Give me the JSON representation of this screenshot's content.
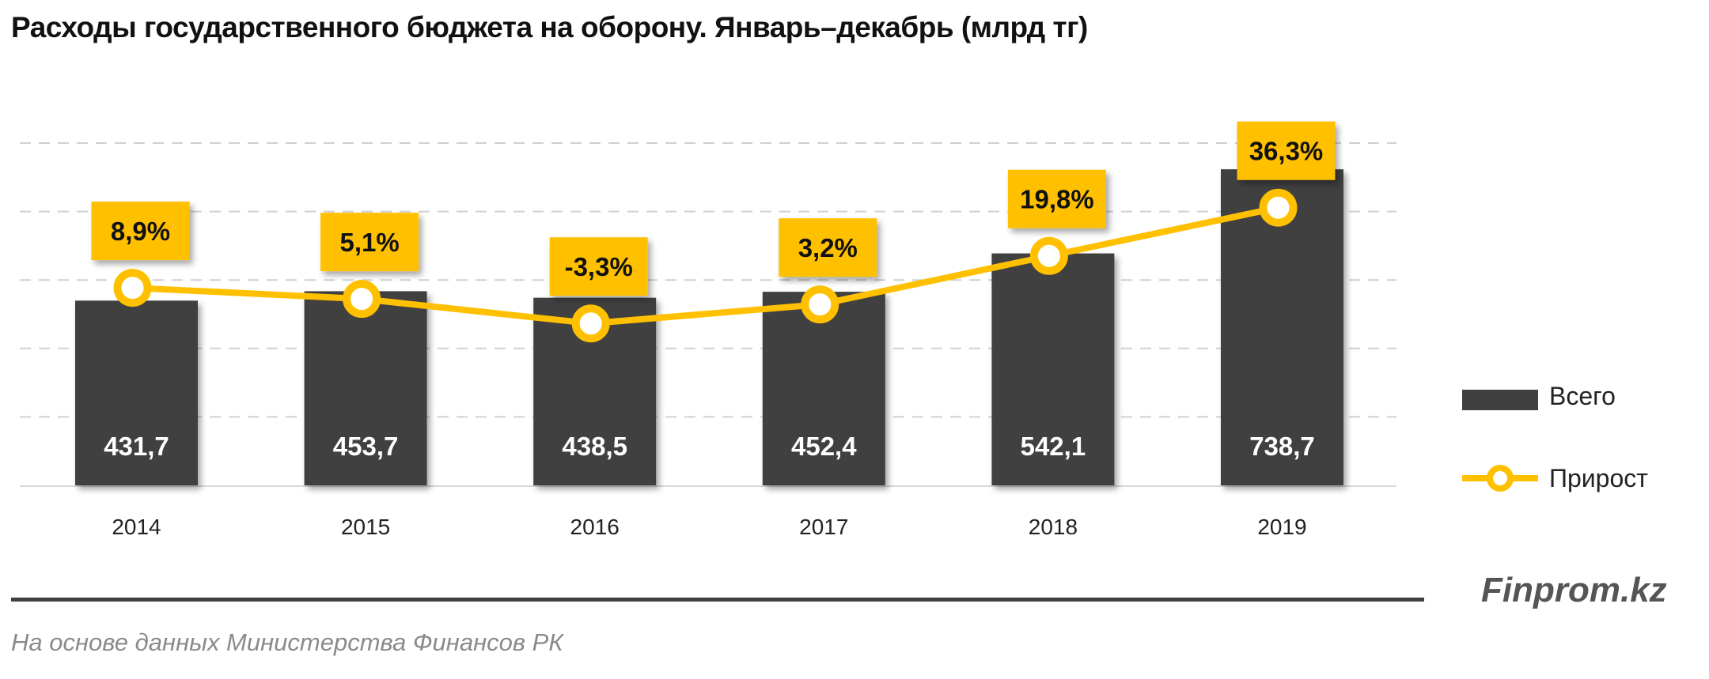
{
  "chart_data": {
    "type": "bar+line",
    "title": "Расходы государственного бюджета на оборону. Январь–декабрь (млрд тг)",
    "categories": [
      "2014",
      "2015",
      "2016",
      "2017",
      "2018",
      "2019"
    ],
    "series": [
      {
        "name": "Всего",
        "type": "bar",
        "color": "#404040",
        "values": [
          431.7,
          453.7,
          438.5,
          452.4,
          542.1,
          738.7
        ],
        "labels": [
          "431,7",
          "453,7",
          "438,5",
          "452,4",
          "542,1",
          "738,7"
        ]
      },
      {
        "name": "Прирост",
        "type": "line",
        "color": "#FFC000",
        "values": [
          8.9,
          5.1,
          -3.3,
          3.2,
          19.8,
          36.3
        ],
        "labels": [
          "8,9%",
          "5,1%",
          "-3,3%",
          "3,2%",
          "19,8%",
          "36,3%"
        ]
      }
    ],
    "ylim": [
      0,
      800
    ],
    "grid": true,
    "legend": "right"
  },
  "footer": {
    "brand": "Finprom.kz",
    "source": "На основе данных  Министерства Финансов  РК"
  }
}
